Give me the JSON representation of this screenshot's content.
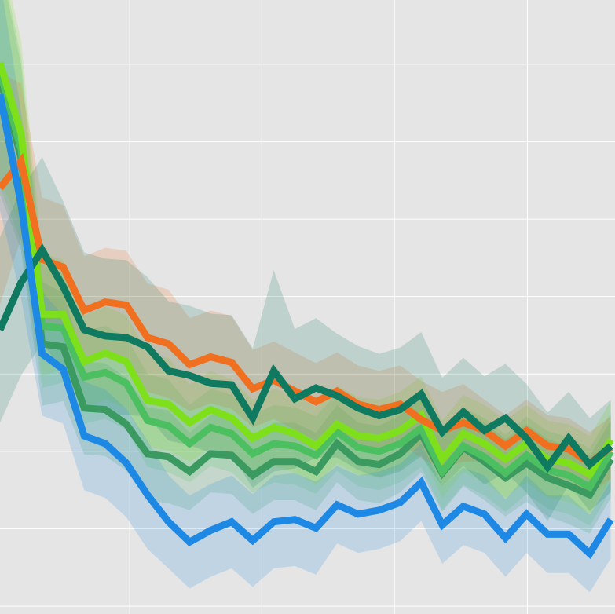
{
  "chart_data": {
    "type": "line",
    "grid": true,
    "x": [
      0,
      1,
      2,
      3,
      4,
      5,
      6,
      7,
      8,
      9,
      10,
      11,
      12,
      13,
      14,
      15,
      16,
      17,
      18,
      19,
      20,
      21,
      22,
      23,
      24,
      25,
      26,
      27,
      28,
      29
    ],
    "xlim": [
      0,
      29.2
    ],
    "xticks": [
      6.16,
      12.43,
      18.73,
      25.04
    ],
    "ylim": [
      -0.1,
      7.83
    ],
    "yticks": [
      0,
      1,
      2,
      3,
      4,
      5,
      6,
      7
    ],
    "series": [
      {
        "color": "#3a9a60",
        "values": [
          6.82,
          5.8,
          3.39,
          3.35,
          2.56,
          2.54,
          2.35,
          1.97,
          1.93,
          1.74,
          1.97,
          1.95,
          1.69,
          1.87,
          1.87,
          1.74,
          2.1,
          1.87,
          1.83,
          1.97,
          2.23,
          1.72,
          2.05,
          1.87,
          1.66,
          1.85,
          1.66,
          1.56,
          1.44,
          1.9
        ],
        "errors": [
          1.5,
          1.2,
          0.8,
          0.7,
          0.6,
          0.6,
          0.6,
          0.6,
          0.6,
          0.5,
          0.5,
          0.5,
          0.5,
          0.5,
          0.5,
          0.5,
          0.5,
          0.5,
          0.5,
          0.5,
          0.5,
          0.5,
          0.5,
          0.5,
          0.5,
          0.5,
          0.5,
          0.5,
          0.5,
          0.5
        ]
      },
      {
        "color": "#4cc060",
        "values": [
          6.92,
          5.9,
          3.62,
          3.59,
          2.96,
          3.02,
          2.88,
          2.4,
          2.33,
          2.1,
          2.31,
          2.23,
          1.97,
          2.1,
          2.07,
          1.95,
          2.25,
          2.05,
          2.0,
          2.1,
          2.3,
          1.74,
          2.07,
          1.93,
          1.72,
          1.95,
          1.76,
          1.69,
          1.54,
          2.0
        ],
        "errors": [
          1.5,
          1.2,
          0.8,
          0.7,
          0.6,
          0.6,
          0.6,
          0.6,
          0.6,
          0.5,
          0.5,
          0.5,
          0.5,
          0.5,
          0.5,
          0.5,
          0.5,
          0.5,
          0.5,
          0.5,
          0.5,
          0.5,
          0.5,
          0.5,
          0.5,
          0.5,
          0.5,
          0.5,
          0.5,
          0.5
        ]
      },
      {
        "color": "#7ee01a",
        "values": [
          7.02,
          6.11,
          3.77,
          3.77,
          3.16,
          3.27,
          3.16,
          2.66,
          2.61,
          2.37,
          2.54,
          2.43,
          2.17,
          2.31,
          2.23,
          2.07,
          2.35,
          2.2,
          2.17,
          2.27,
          2.47,
          1.9,
          2.23,
          2.1,
          1.9,
          2.1,
          1.9,
          1.85,
          1.7,
          2.15
        ],
        "errors": [
          1.5,
          1.2,
          0.8,
          0.7,
          0.6,
          0.6,
          0.6,
          0.6,
          0.6,
          0.5,
          0.5,
          0.5,
          0.5,
          0.5,
          0.5,
          0.5,
          0.5,
          0.5,
          0.5,
          0.5,
          0.5,
          0.5,
          0.5,
          0.5,
          0.5,
          0.5,
          0.5,
          0.5,
          0.5,
          0.5
        ]
      },
      {
        "color": "#f07020",
        "values": [
          5.4,
          5.75,
          4.48,
          4.38,
          3.82,
          3.93,
          3.89,
          3.47,
          3.39,
          3.12,
          3.22,
          3.15,
          2.81,
          2.92,
          2.78,
          2.64,
          2.78,
          2.61,
          2.54,
          2.61,
          2.41,
          2.27,
          2.37,
          2.27,
          2.07,
          2.27,
          2.07,
          2.03,
          1.85,
          2.05
        ],
        "errors": [
          1.5,
          1.0,
          0.8,
          0.8,
          0.7,
          0.7,
          0.7,
          0.7,
          0.7,
          0.6,
          0.6,
          0.6,
          0.5,
          0.5,
          0.5,
          0.5,
          0.5,
          0.5,
          0.5,
          0.5,
          0.5,
          0.5,
          0.5,
          0.4,
          0.4,
          0.4,
          0.4,
          0.4,
          0.4,
          0.4
        ]
      },
      {
        "color": "#0f7a60",
        "values": [
          3.57,
          4.18,
          4.6,
          4.13,
          3.57,
          3.49,
          3.47,
          3.35,
          3.04,
          2.98,
          2.88,
          2.86,
          2.43,
          3.04,
          2.68,
          2.82,
          2.72,
          2.56,
          2.46,
          2.54,
          2.74,
          2.25,
          2.51,
          2.27,
          2.43,
          2.17,
          1.8,
          2.17,
          1.83,
          2.07
        ],
        "errors": [
          1.2,
          1.2,
          1.2,
          1.1,
          1.0,
          1.0,
          1.0,
          0.9,
          0.9,
          0.9,
          0.9,
          0.9,
          0.9,
          1.3,
          0.9,
          0.9,
          0.8,
          0.8,
          0.8,
          0.8,
          0.8,
          0.7,
          0.7,
          0.7,
          0.7,
          0.7,
          0.7,
          0.6,
          0.6,
          0.6
        ]
      },
      {
        "color": "#1e88e5",
        "values": [
          6.61,
          5.19,
          3.26,
          3.06,
          2.2,
          2.1,
          1.85,
          1.44,
          1.09,
          0.83,
          0.98,
          1.09,
          0.85,
          1.09,
          1.12,
          1.01,
          1.31,
          1.19,
          1.24,
          1.34,
          1.6,
          1.05,
          1.29,
          1.19,
          0.88,
          1.19,
          0.93,
          0.93,
          0.68,
          1.12
        ],
        "errors": [
          1.5,
          1.2,
          0.8,
          0.7,
          0.7,
          0.7,
          0.7,
          0.7,
          0.6,
          0.6,
          0.6,
          0.6,
          0.6,
          0.6,
          0.6,
          0.6,
          0.5,
          0.5,
          0.5,
          0.5,
          0.5,
          0.5,
          0.5,
          0.5,
          0.5,
          0.5,
          0.5,
          0.5,
          0.5,
          0.5
        ]
      }
    ]
  }
}
